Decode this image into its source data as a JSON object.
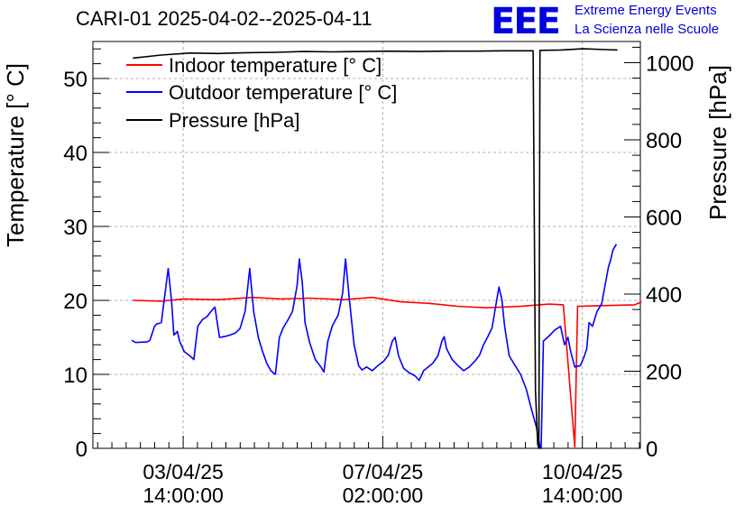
{
  "header": {
    "title": "CARI-01 2025-04-02--2025-04-11",
    "logo_text": "EEE",
    "logo_line1": "Extreme Energy Events",
    "logo_line2": "La Scienza nelle Scuole"
  },
  "colors": {
    "indoor": "#ff0000",
    "outdoor": "#0000ff",
    "pressure": "#000000",
    "logo": "#0000e0"
  },
  "chart_data": {
    "type": "line",
    "title": "CARI-01 2025-04-02--2025-04-11",
    "ylabel": "Temperature [° C]",
    "y2label": "Pressure [hPa]",
    "ylim": [
      0,
      55
    ],
    "y2lim": [
      0,
      1055
    ],
    "xlim": [
      2.0,
      11.6
    ],
    "x_unit": "day of April 2025",
    "grid": true,
    "legend": "top-left",
    "x_ticks": [
      {
        "x": 3.583,
        "line1": "03/04/25",
        "line2": "14:00:00"
      },
      {
        "x": 7.083,
        "line1": "07/04/25",
        "line2": "02:00:00"
      },
      {
        "x": 10.583,
        "line1": "10/04/25",
        "line2": "14:00:00"
      }
    ],
    "y_ticks": [
      0,
      10,
      20,
      30,
      40,
      50
    ],
    "y2_ticks": [
      0,
      200,
      400,
      600,
      800,
      1000
    ],
    "series": [
      {
        "name": "Indoor temperature [° C]",
        "axis": "left",
        "color": "#ff0000",
        "points": [
          [
            2.7,
            20.0
          ],
          [
            3.2,
            19.9
          ],
          [
            3.6,
            20.2
          ],
          [
            4.2,
            20.1
          ],
          [
            4.8,
            20.4
          ],
          [
            5.3,
            20.2
          ],
          [
            5.8,
            20.3
          ],
          [
            6.4,
            20.1
          ],
          [
            6.9,
            20.4
          ],
          [
            7.4,
            19.8
          ],
          [
            7.9,
            19.6
          ],
          [
            8.4,
            19.2
          ],
          [
            8.9,
            19.0
          ],
          [
            9.5,
            19.2
          ],
          [
            10.0,
            19.5
          ],
          [
            10.25,
            19.4
          ],
          [
            10.45,
            0.2
          ],
          [
            10.5,
            19.2
          ],
          [
            11.0,
            19.3
          ],
          [
            11.5,
            19.4
          ],
          [
            11.62,
            19.8
          ]
        ]
      },
      {
        "name": "Outdoor temperature [° C]",
        "axis": "left",
        "color": "#0000ff",
        "points": [
          [
            2.68,
            14.6
          ],
          [
            2.75,
            14.3
          ],
          [
            2.95,
            14.4
          ],
          [
            3.0,
            14.6
          ],
          [
            3.08,
            16.5
          ],
          [
            3.12,
            16.8
          ],
          [
            3.2,
            17.0
          ],
          [
            3.25,
            20.0
          ],
          [
            3.32,
            24.3
          ],
          [
            3.38,
            19.8
          ],
          [
            3.42,
            15.3
          ],
          [
            3.48,
            15.8
          ],
          [
            3.52,
            14.5
          ],
          [
            3.6,
            13.1
          ],
          [
            3.7,
            12.5
          ],
          [
            3.77,
            12.0
          ],
          [
            3.84,
            16.5
          ],
          [
            3.92,
            17.4
          ],
          [
            4.0,
            17.8
          ],
          [
            4.08,
            18.6
          ],
          [
            4.14,
            19.1
          ],
          [
            4.22,
            15.0
          ],
          [
            4.3,
            15.1
          ],
          [
            4.4,
            15.3
          ],
          [
            4.5,
            15.6
          ],
          [
            4.58,
            16.2
          ],
          [
            4.67,
            18.5
          ],
          [
            4.75,
            24.3
          ],
          [
            4.82,
            18.5
          ],
          [
            4.9,
            15.0
          ],
          [
            4.97,
            13.2
          ],
          [
            5.05,
            11.5
          ],
          [
            5.12,
            10.5
          ],
          [
            5.2,
            10.0
          ],
          [
            5.27,
            15.0
          ],
          [
            5.33,
            16.2
          ],
          [
            5.43,
            17.5
          ],
          [
            5.5,
            18.5
          ],
          [
            5.58,
            22.0
          ],
          [
            5.62,
            25.6
          ],
          [
            5.67,
            22.5
          ],
          [
            5.72,
            17.0
          ],
          [
            5.8,
            14.3
          ],
          [
            5.9,
            12.0
          ],
          [
            6.0,
            11.0
          ],
          [
            6.05,
            10.3
          ],
          [
            6.12,
            14.5
          ],
          [
            6.2,
            16.6
          ],
          [
            6.3,
            18.0
          ],
          [
            6.38,
            21.0
          ],
          [
            6.43,
            25.6
          ],
          [
            6.5,
            20.0
          ],
          [
            6.58,
            14.0
          ],
          [
            6.66,
            11.2
          ],
          [
            6.72,
            10.6
          ],
          [
            6.8,
            11.0
          ],
          [
            6.9,
            10.5
          ],
          [
            7.0,
            11.2
          ],
          [
            7.1,
            11.8
          ],
          [
            7.18,
            12.6
          ],
          [
            7.25,
            14.5
          ],
          [
            7.3,
            15.0
          ],
          [
            7.36,
            12.5
          ],
          [
            7.45,
            10.8
          ],
          [
            7.55,
            10.2
          ],
          [
            7.65,
            9.8
          ],
          [
            7.72,
            9.2
          ],
          [
            7.8,
            10.5
          ],
          [
            7.88,
            11.0
          ],
          [
            7.96,
            11.5
          ],
          [
            8.05,
            12.5
          ],
          [
            8.12,
            14.5
          ],
          [
            8.16,
            15.1
          ],
          [
            8.2,
            13.5
          ],
          [
            8.3,
            12.0
          ],
          [
            8.4,
            11.2
          ],
          [
            8.5,
            10.5
          ],
          [
            8.6,
            11.0
          ],
          [
            8.7,
            11.8
          ],
          [
            8.78,
            12.6
          ],
          [
            8.85,
            14.0
          ],
          [
            8.92,
            15.0
          ],
          [
            9.0,
            16.3
          ],
          [
            9.08,
            20.0
          ],
          [
            9.12,
            21.8
          ],
          [
            9.17,
            20.2
          ],
          [
            9.22,
            16.5
          ],
          [
            9.3,
            12.5
          ],
          [
            9.38,
            11.5
          ],
          [
            9.5,
            10.0
          ],
          [
            9.6,
            8.0
          ],
          [
            9.7,
            5.0
          ],
          [
            9.78,
            2.8
          ],
          [
            9.83,
            0.5
          ],
          [
            9.86,
            0.0
          ],
          [
            9.9,
            14.5
          ],
          [
            10.0,
            15.2
          ],
          [
            10.1,
            16.0
          ],
          [
            10.2,
            16.5
          ],
          [
            10.27,
            14.0
          ],
          [
            10.33,
            15.0
          ],
          [
            10.38,
            13.0
          ],
          [
            10.45,
            11.0
          ],
          [
            10.55,
            11.2
          ],
          [
            10.62,
            12.5
          ],
          [
            10.66,
            13.5
          ],
          [
            10.7,
            17.0
          ],
          [
            10.76,
            16.5
          ],
          [
            10.84,
            18.5
          ],
          [
            10.92,
            19.5
          ],
          [
            10.98,
            22.0
          ],
          [
            11.04,
            24.5
          ],
          [
            11.08,
            25.5
          ],
          [
            11.12,
            26.8
          ],
          [
            11.18,
            27.6
          ]
        ]
      },
      {
        "name": "Pressure [hPa]",
        "axis": "right",
        "color": "#000000",
        "points": [
          [
            2.7,
            1012
          ],
          [
            3.2,
            1020
          ],
          [
            3.7,
            1025
          ],
          [
            4.2,
            1024
          ],
          [
            4.7,
            1026
          ],
          [
            5.2,
            1027
          ],
          [
            5.7,
            1029
          ],
          [
            6.2,
            1028
          ],
          [
            6.7,
            1029
          ],
          [
            7.2,
            1030
          ],
          [
            7.7,
            1029
          ],
          [
            8.2,
            1030
          ],
          [
            8.7,
            1030
          ],
          [
            9.2,
            1031
          ],
          [
            9.6,
            1031
          ],
          [
            9.72,
            1031
          ],
          [
            9.76,
            150
          ],
          [
            9.8,
            10
          ],
          [
            9.82,
            0
          ],
          [
            9.84,
            1032
          ],
          [
            10.2,
            1033
          ],
          [
            10.6,
            1036
          ],
          [
            11.0,
            1034
          ],
          [
            11.2,
            1033
          ]
        ]
      }
    ]
  }
}
